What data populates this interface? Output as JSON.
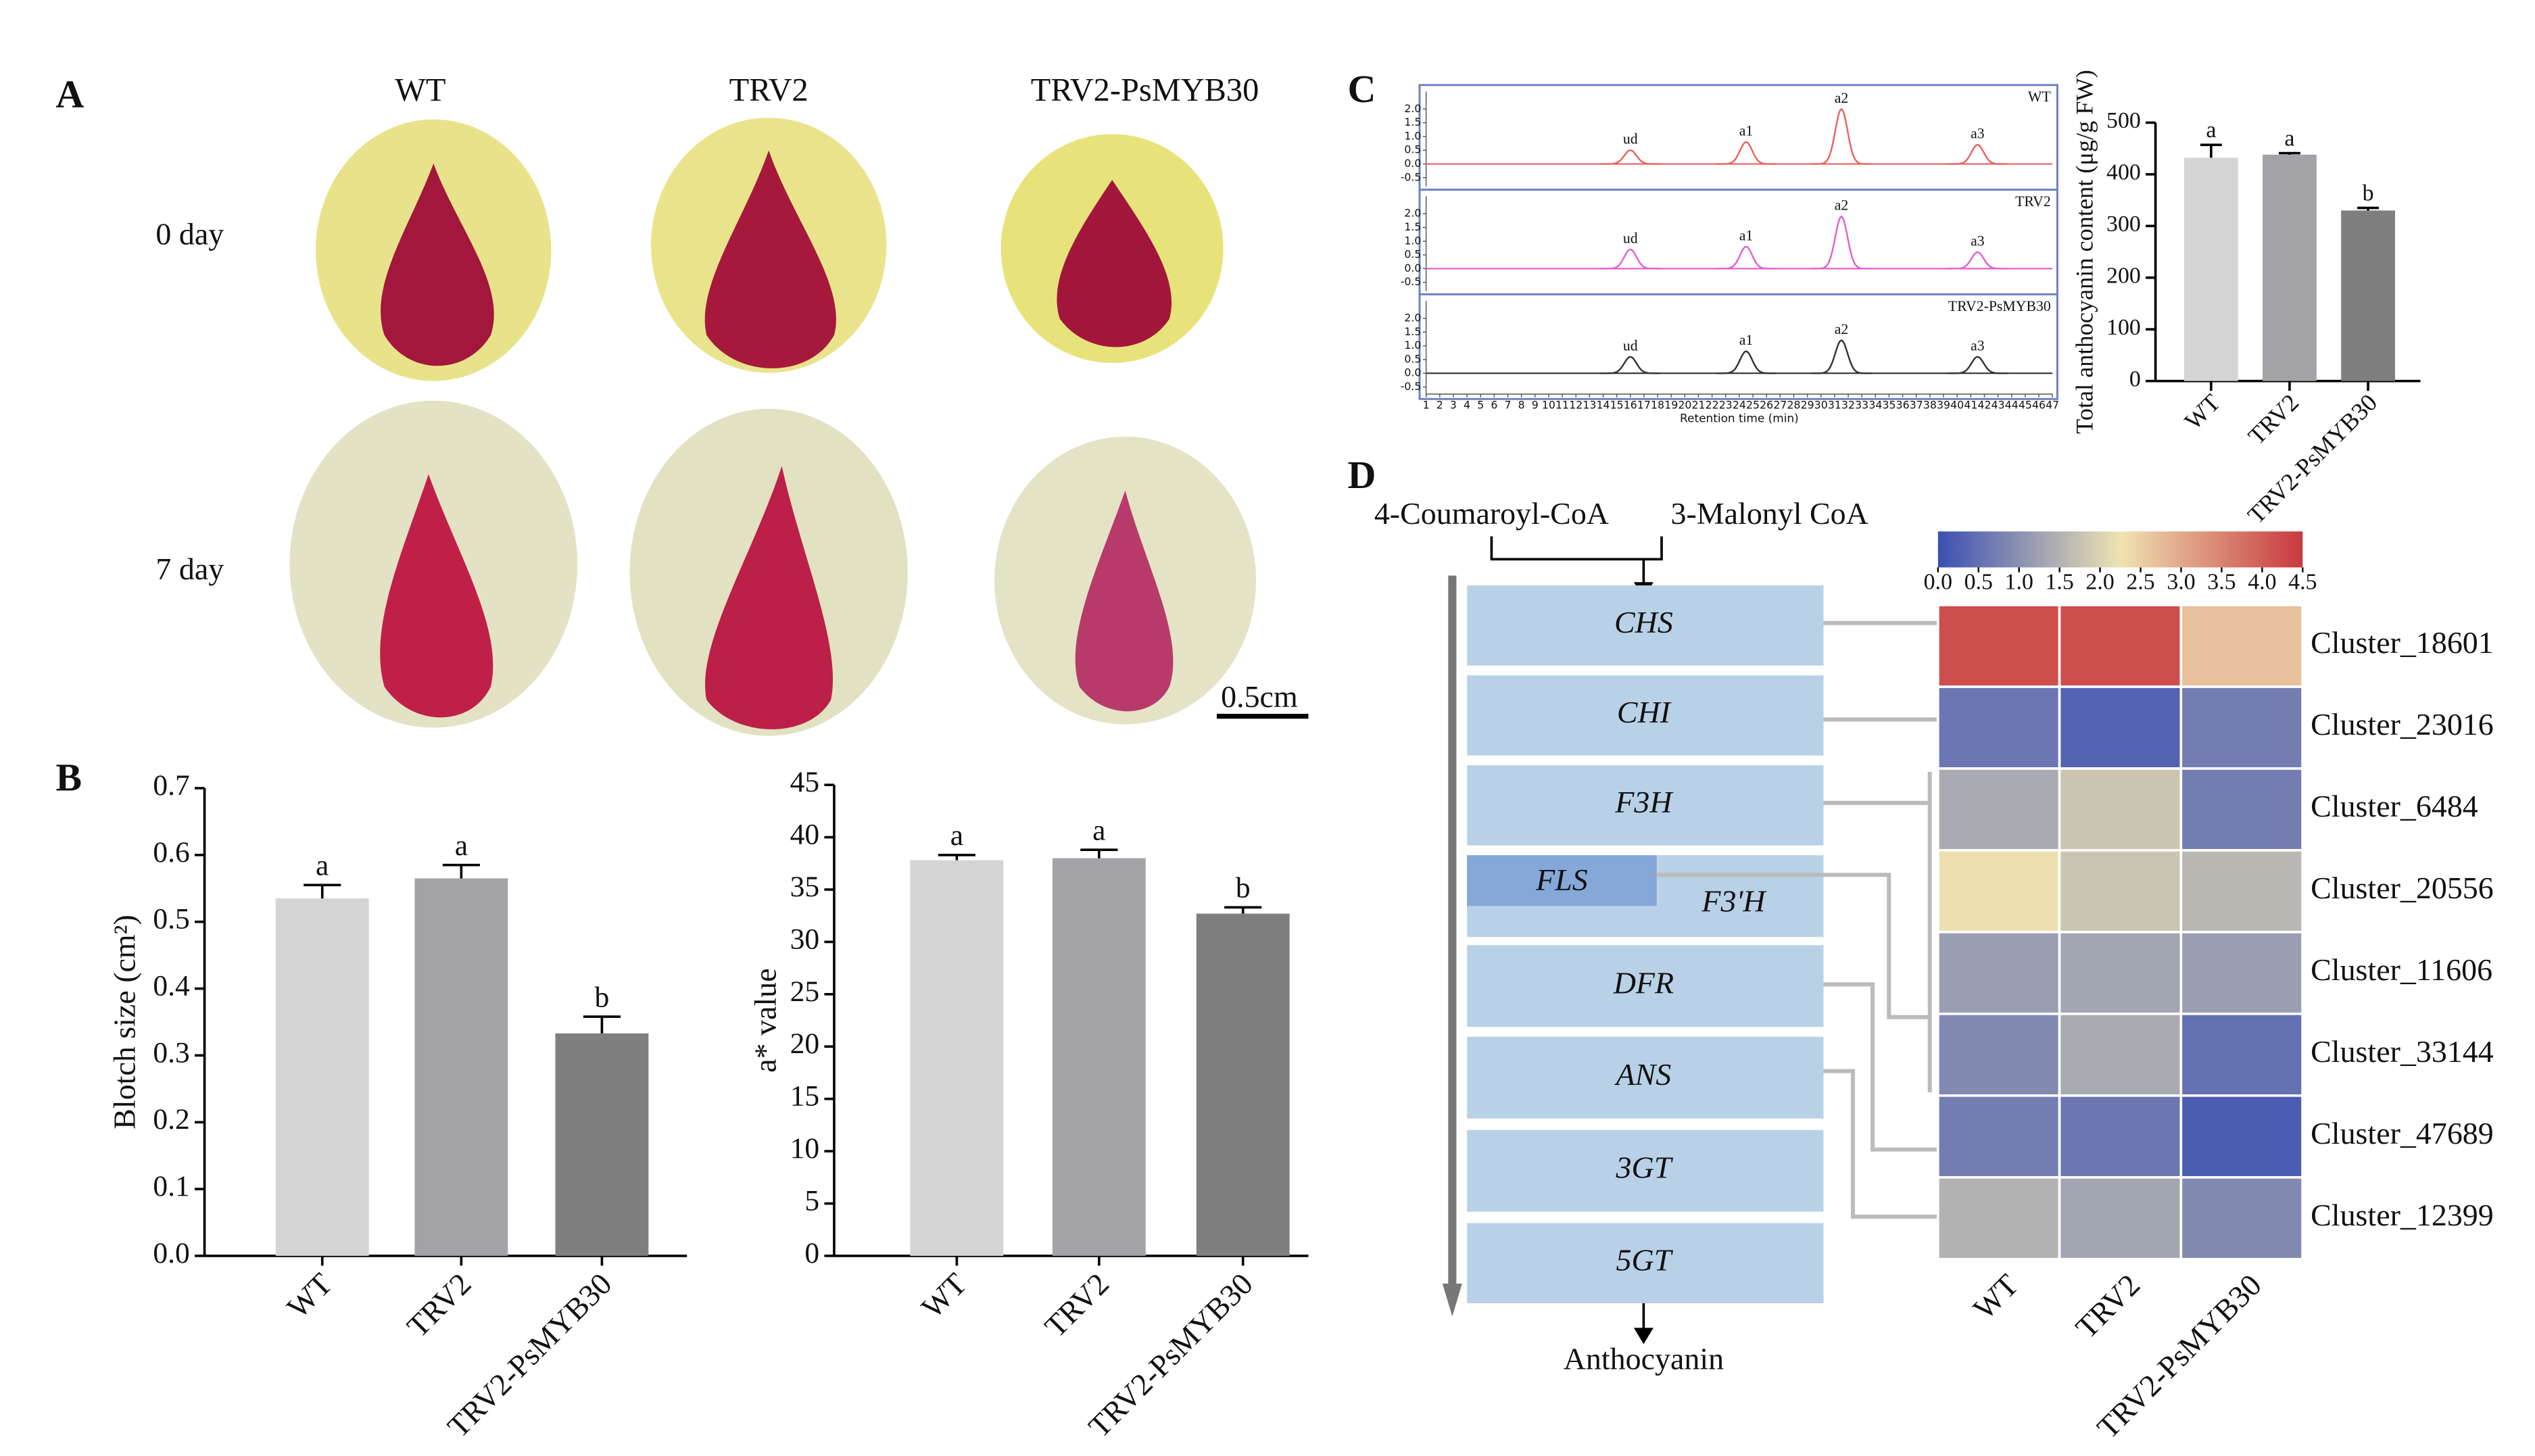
{
  "panel_labels": [
    "A",
    "B",
    "C",
    "D"
  ],
  "photos": {
    "columns": [
      "WT",
      "TRV2",
      "TRV2-PsMYB30"
    ],
    "rows": [
      "0 day",
      "7 day"
    ],
    "scale_bar": "0.5cm"
  },
  "pathway": {
    "substrates": [
      "4-Coumaroyl-CoA",
      "3-Malonyl CoA"
    ],
    "enzymes": [
      "CHS",
      "CHI",
      "F3H",
      "F3'H",
      "DFR",
      "ANS",
      "3GT",
      "5GT"
    ],
    "branch": "FLS",
    "product": "Anthocyanin"
  },
  "chart_data": [
    {
      "type": "bar",
      "ylabel": "Blotch size (cm²)",
      "categories": [
        "WT",
        "TRV2",
        "TRV2-PsMYB30"
      ],
      "values": [
        0.535,
        0.565,
        0.333
      ],
      "errors": [
        0.02,
        0.02,
        0.025
      ],
      "annotations": [
        "a",
        "a",
        "b"
      ],
      "colors": [
        "#d4d4d4",
        "#a3a3a7",
        "#7f7f7f"
      ],
      "ylim": [
        0,
        0.7
      ],
      "yticks": [
        {
          "value": 0,
          "label": "0.0"
        },
        0.1,
        0.2,
        0.3,
        0.4,
        0.5,
        0.6,
        0.7
      ]
    },
    {
      "type": "bar",
      "ylabel": "a* value",
      "categories": [
        "WT",
        "TRV2",
        "TRV2-PsMYB30"
      ],
      "values": [
        37.8,
        38,
        32.7
      ],
      "errors": [
        0.5,
        0.8,
        0.6
      ],
      "annotations": [
        "a",
        "a",
        "b"
      ],
      "colors": [
        "#d4d4d4",
        "#a3a3a7",
        "#7f7f7f"
      ],
      "ylim": [
        0,
        45
      ],
      "yticks": [
        0,
        5,
        10,
        15,
        20,
        25,
        30,
        35,
        40,
        45
      ]
    },
    {
      "type": "bar",
      "ylabel": "Total anthocyanin content (μg/g FW)",
      "categories": [
        "WT",
        "TRV2",
        "TRV2-PsMYB30"
      ],
      "values": [
        432,
        438,
        330
      ],
      "errors": [
        25,
        3,
        5
      ],
      "annotations": [
        "a",
        "a",
        "b"
      ],
      "colors": [
        "#d4d4d4",
        "#a3a3a7",
        "#7f7f7f"
      ],
      "ylim": [
        0,
        500
      ],
      "yticks": [
        0,
        100,
        200,
        300,
        400,
        500
      ]
    },
    {
      "type": "heatmap",
      "columns": [
        "WT",
        "TRV2",
        "TRV2-PsMYB30"
      ],
      "rows": [
        "Cluster_18601",
        "Cluster_23016",
        "Cluster_6484",
        "Cluster_20556",
        "Cluster_11606",
        "Cluster_33144",
        "Cluster_47689",
        "Cluster_12399"
      ],
      "values": [
        [
          4.2,
          4.2,
          2.7
        ],
        [
          0.6,
          0.3,
          0.7
        ],
        [
          1.4,
          1.8,
          0.7
        ],
        [
          2.3,
          1.8,
          1.6
        ],
        [
          1.2,
          1.3,
          1.2
        ],
        [
          0.9,
          1.4,
          0.5
        ],
        [
          0.7,
          0.6,
          0.2
        ],
        [
          1.5,
          1.3,
          0.9
        ]
      ],
      "colorscale": [
        "#3b4fb2",
        "#eee3b2",
        "#c8383e"
      ],
      "clim": [
        0,
        4.5
      ],
      "cticks": [
        {
          "value": 0,
          "label": "0.0"
        },
        0.5,
        {
          "value": 1,
          "label": "1.0"
        },
        1.5,
        {
          "value": 2,
          "label": "2.0"
        },
        2.5,
        {
          "value": 3,
          "label": "3.0"
        },
        3.5,
        {
          "value": 4,
          "label": "4.0"
        },
        4.5
      ]
    },
    {
      "type": "chromatogram",
      "xlabel": "Retention time (min)",
      "peak_labels": [
        "ud",
        "a1",
        "a2",
        "a3"
      ],
      "peak_x": [
        16,
        24.5,
        31.5,
        41.5
      ],
      "series": [
        {
          "name": "WT",
          "color": "#e8625f",
          "values": [
            0.5,
            0.8,
            2.0,
            0.7
          ]
        },
        {
          "name": "TRV2",
          "color": "#e25fd0",
          "values": [
            0.7,
            0.8,
            1.9,
            0.6
          ]
        },
        {
          "name": "TRV2-PsMYB30",
          "color": "#333333",
          "values": [
            0.6,
            0.8,
            1.2,
            0.6
          ]
        }
      ],
      "xlim": [
        1,
        47
      ],
      "xticks": [
        1,
        2,
        3,
        4,
        5,
        6,
        7,
        8,
        9,
        10,
        11,
        12,
        13,
        14,
        15,
        16,
        17,
        18,
        19,
        20,
        21,
        22,
        23,
        24,
        25,
        26,
        27,
        28,
        29,
        30,
        31,
        32,
        33,
        34,
        35,
        36,
        37,
        38,
        39,
        40,
        41,
        42,
        43,
        44,
        45,
        46,
        47
      ],
      "ylim": [
        -0.7,
        2.4
      ],
      "yticks": [
        {
          "value": 2,
          "label": "2.0"
        },
        1.5,
        {
          "value": 1,
          "label": "1.0"
        },
        0.5,
        {
          "value": 0,
          "label": "0.0"
        },
        -0.5
      ]
    }
  ]
}
